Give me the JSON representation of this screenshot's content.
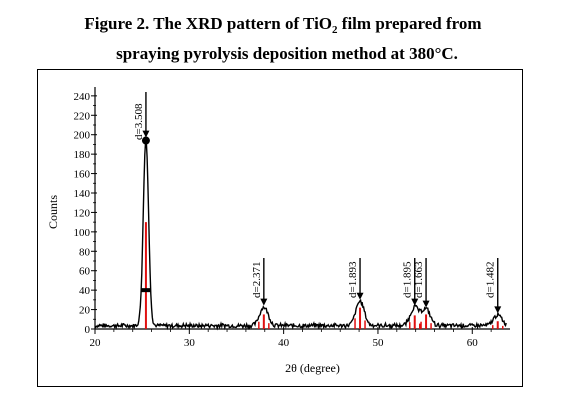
{
  "caption": {
    "line1_prefix": "Figure 2. The XRD pattern of TiO",
    "line1_sub": "2",
    "line1_suffix": " film prepared from",
    "line2": "spraying pyrolysis deposition method at 380°C."
  },
  "chart_data": {
    "type": "line",
    "xlabel": "2θ (degree)",
    "ylabel": "Counts",
    "xlim": [
      20,
      64
    ],
    "ylim": [
      0,
      245
    ],
    "x_ticks": [
      20,
      30,
      40,
      50,
      60
    ],
    "y_ticks": [
      0,
      20,
      40,
      60,
      80,
      100,
      120,
      140,
      160,
      180,
      200,
      220,
      240
    ],
    "grid": false,
    "peaks": [
      {
        "x": 25.4,
        "y": 195,
        "label": "d=3.508",
        "ref": 110
      },
      {
        "x": 37.9,
        "y": 22,
        "label": "d=2.371",
        "ref": 15
      },
      {
        "x": 48.1,
        "y": 28,
        "label": "d=1.893",
        "ref": 22
      },
      {
        "x": 53.9,
        "y": 22,
        "label": "d=1.895",
        "ref": 14
      },
      {
        "x": 55.1,
        "y": 20,
        "label": "d=1.663",
        "ref": 15
      },
      {
        "x": 62.7,
        "y": 14,
        "label": "d=1.482",
        "ref": 8
      }
    ],
    "marker_point": {
      "x": 25.4,
      "y": 194
    },
    "bar_marker": {
      "x": 25.4,
      "y": 40
    },
    "colors": {
      "pattern": "#000000",
      "reference": "#e01010"
    }
  }
}
